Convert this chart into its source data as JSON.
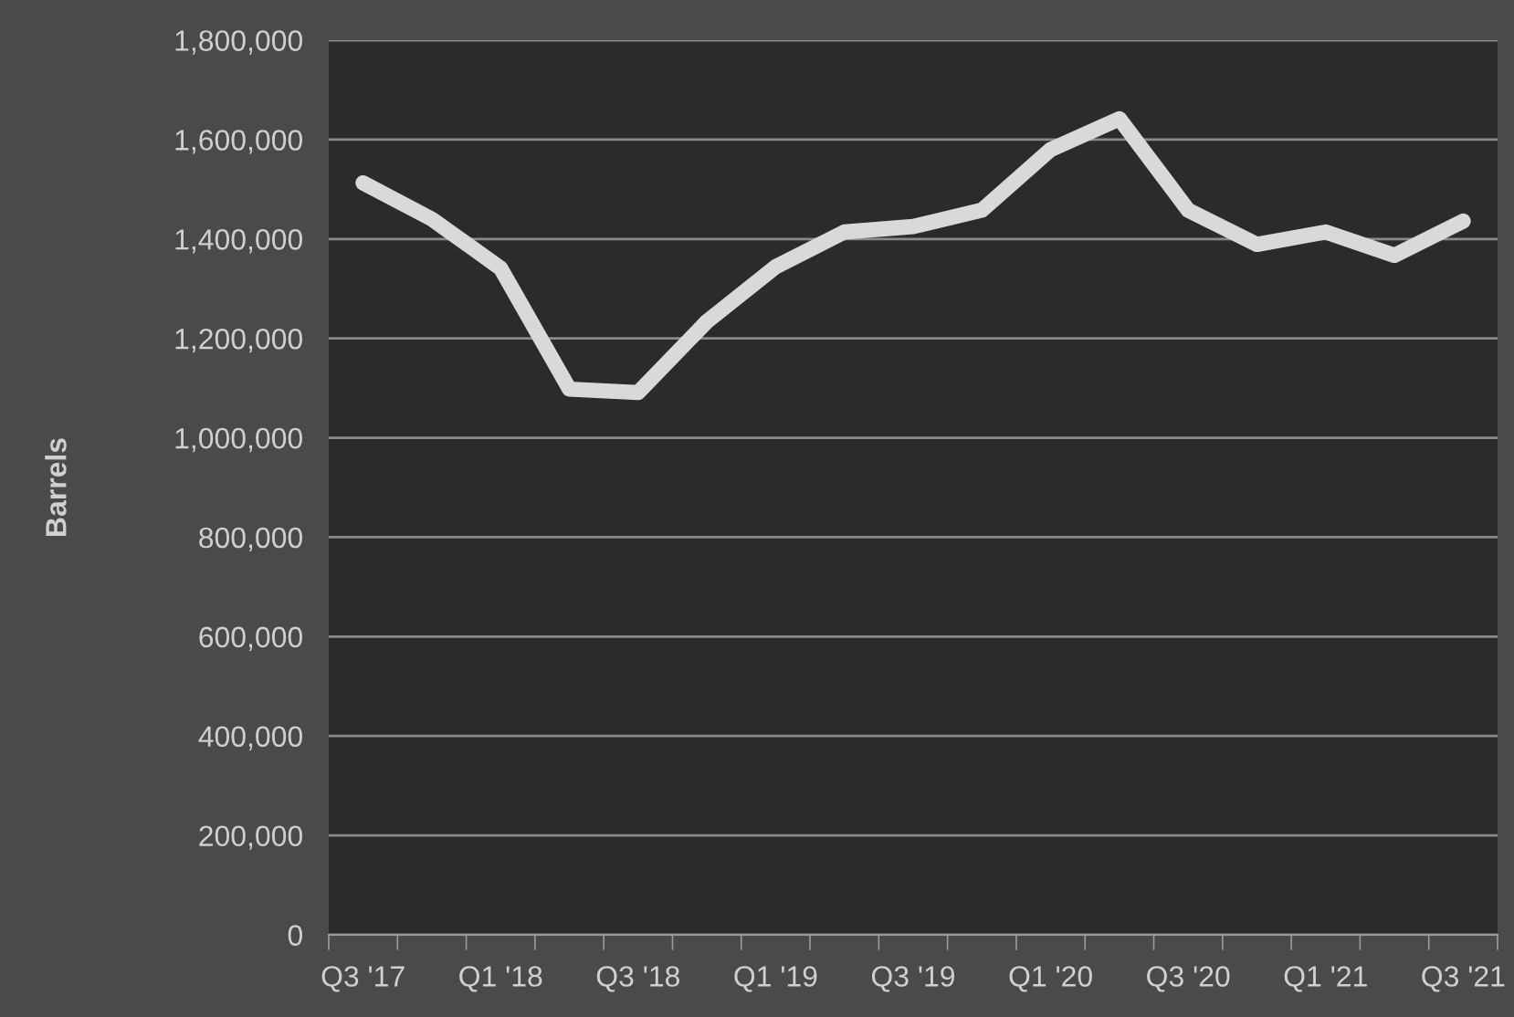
{
  "chart_data": {
    "type": "line",
    "ylabel": "Barrels",
    "categories": [
      "Q3 '17",
      null,
      "Q1 '18",
      null,
      "Q3 '18",
      null,
      "Q1 '19",
      null,
      "Q3 '19",
      null,
      "Q1 '20",
      null,
      "Q3 '20",
      null,
      "Q1 '21",
      null,
      "Q3 '21"
    ],
    "series": [
      {
        "color": "#d9d9d9",
        "values": [
          1513000,
          1440000,
          1341000,
          1098000,
          1091000,
          1234000,
          1344000,
          1414000,
          1425000,
          1458000,
          1580000,
          1642000,
          1458000,
          1389000,
          1414000,
          1367000,
          1436000
        ]
      }
    ],
    "ylim": [
      0,
      1800000
    ],
    "yticks": [
      {
        "value": 0,
        "label": "0"
      },
      {
        "value": 200000,
        "label": "200,000"
      },
      {
        "value": 400000,
        "label": "400,000"
      },
      {
        "value": 600000,
        "label": "600,000"
      },
      {
        "value": 800000,
        "label": "800,000"
      },
      {
        "value": 1000000,
        "label": "1,000,000"
      },
      {
        "value": 1200000,
        "label": "1,200,000"
      },
      {
        "value": 1400000,
        "label": "1,400,000"
      },
      {
        "value": 1600000,
        "label": "1,600,000"
      },
      {
        "value": 1800000,
        "label": "1,800,000"
      }
    ],
    "grid": "y",
    "marker": "none",
    "line_style": "solid"
  }
}
